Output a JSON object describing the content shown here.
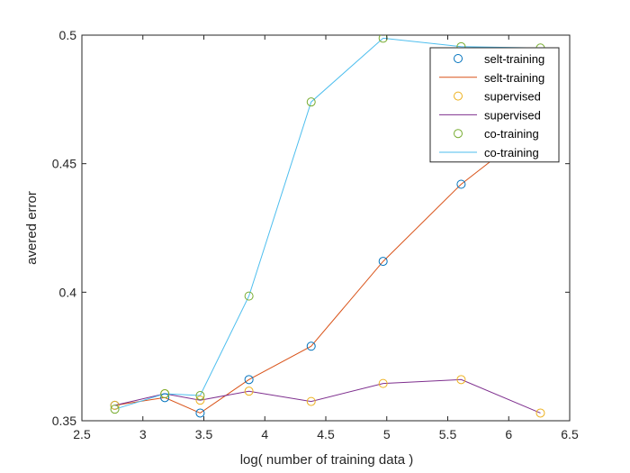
{
  "chart_data": {
    "type": "line",
    "title": "",
    "xlabel": "log( number of training data )",
    "ylabel": "avered error",
    "xlim": [
      2.5,
      6.5
    ],
    "ylim": [
      0.35,
      0.5
    ],
    "xticks": [
      "2.5",
      "3",
      "3.5",
      "4",
      "4.5",
      "5",
      "5.5",
      "6",
      "6.5"
    ],
    "yticks": [
      "0.35",
      "0.4",
      "0.45",
      "0.5"
    ],
    "grid": false,
    "legend_position": "top-right",
    "x": [
      2.77,
      3.18,
      3.47,
      3.87,
      4.38,
      4.97,
      5.61,
      6.26
    ],
    "series": [
      {
        "name": "selt-training",
        "marker_color": "#0072BD",
        "line_color": "#D95319",
        "values": [
          0.356,
          0.359,
          0.353,
          0.366,
          0.379,
          0.412,
          0.442,
          0.466
        ]
      },
      {
        "name": "supervised",
        "marker_color": "#EDB120",
        "line_color": "#7E2F8E",
        "values": [
          0.356,
          0.3605,
          0.358,
          0.3615,
          0.3575,
          0.3645,
          0.366,
          0.353
        ]
      },
      {
        "name": "co-training",
        "marker_color": "#77AC30",
        "line_color": "#4DBEEE",
        "values": [
          0.3545,
          0.3605,
          0.3598,
          0.3985,
          0.474,
          0.4988,
          0.4955,
          0.495
        ]
      }
    ]
  }
}
